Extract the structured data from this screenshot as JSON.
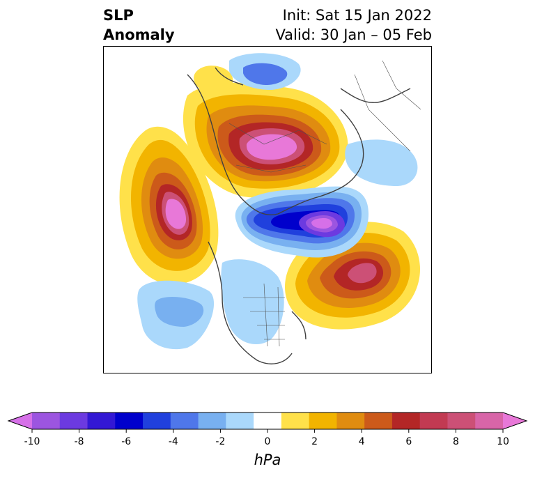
{
  "title": {
    "left_line1": "SLP",
    "left_line2": "Anomaly",
    "right_line1": "Init: Sat 15 Jan 2022",
    "right_line2": "Valid: 30 Jan – 05 Feb"
  },
  "colorbar": {
    "label": "hPa",
    "ticks": [
      "-10",
      "-8",
      "-6",
      "-4",
      "-2",
      "0",
      "2",
      "4",
      "6",
      "8",
      "10"
    ],
    "colors": [
      "#d670e8",
      "#9c55e0",
      "#6c3ae0",
      "#3318d4",
      "#0000cc",
      "#2040dd",
      "#4f77ea",
      "#78b0f0",
      "#aad8fb",
      "#ffffff",
      "#ffe14a",
      "#f2b400",
      "#e08c10",
      "#cc5a1a",
      "#b32626",
      "#c23a52",
      "#cc5076",
      "#d865a8",
      "#e878d8"
    ]
  }
}
